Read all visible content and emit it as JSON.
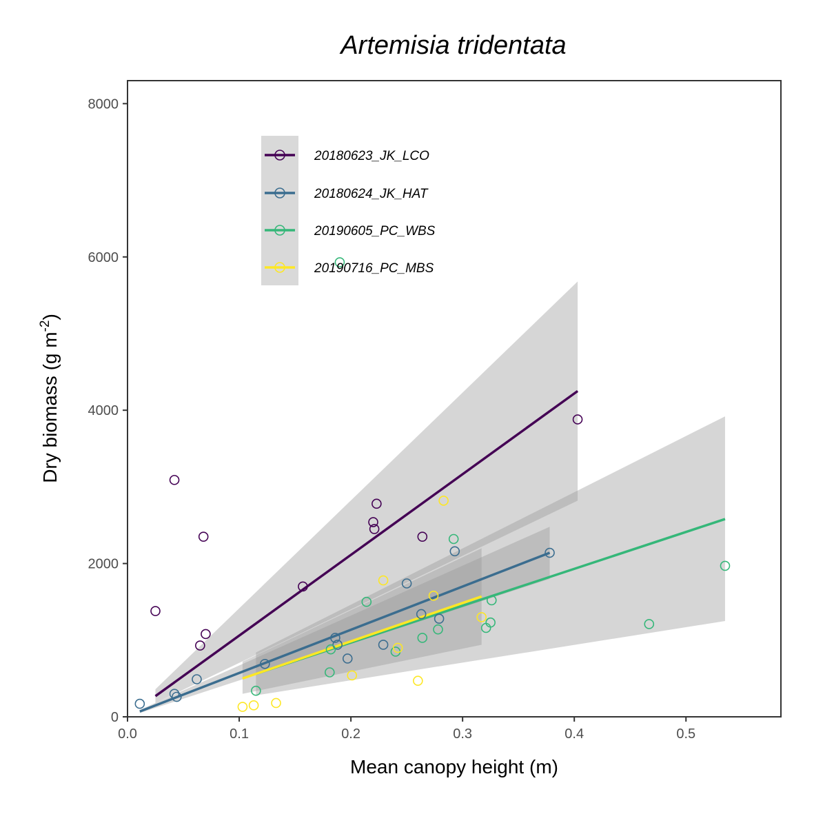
{
  "chart_data": {
    "type": "scatter",
    "title": "Artemisia tridentata",
    "xlabel": "Mean canopy height (m)",
    "ylabel": {
      "base": "Dry biomass (g m",
      "superscript": "-2",
      "close": ")"
    },
    "xlim": [
      0.0,
      0.585
    ],
    "ylim": [
      0,
      8300
    ],
    "x_ticks": [
      0.0,
      0.1,
      0.2,
      0.3,
      0.4,
      0.5
    ],
    "x_tick_labels": [
      "0.0",
      "0.1",
      "0.2",
      "0.3",
      "0.4",
      "0.5"
    ],
    "y_ticks": [
      0,
      2000,
      4000,
      6000,
      8000
    ],
    "y_tick_labels": [
      "0",
      "2000",
      "4000",
      "6000",
      "8000"
    ],
    "grid": false,
    "legend_position": "top-left",
    "series": [
      {
        "name": "20180623_JK_LCO",
        "color": "#440154",
        "points": [
          [
            0.025,
            1380
          ],
          [
            0.042,
            3090
          ],
          [
            0.065,
            930
          ],
          [
            0.068,
            2350
          ],
          [
            0.07,
            1080
          ],
          [
            0.157,
            1700
          ],
          [
            0.22,
            2540
          ],
          [
            0.221,
            2450
          ],
          [
            0.223,
            2780
          ],
          [
            0.264,
            2350
          ],
          [
            0.403,
            3880
          ]
        ],
        "fit": {
          "x": [
            0.025,
            0.403
          ],
          "y": [
            270,
            4250
          ]
        },
        "ci": {
          "x": [
            0.025,
            0.403
          ],
          "upper": [
            360,
            5680
          ],
          "lower": [
            180,
            2820
          ]
        }
      },
      {
        "name": "20180624_JK_HAT",
        "color": "#3b6d8f",
        "points": [
          [
            0.011,
            170
          ],
          [
            0.042,
            300
          ],
          [
            0.044,
            260
          ],
          [
            0.062,
            490
          ],
          [
            0.123,
            690
          ],
          [
            0.186,
            1030
          ],
          [
            0.188,
            940
          ],
          [
            0.197,
            760
          ],
          [
            0.229,
            940
          ],
          [
            0.25,
            1740
          ],
          [
            0.263,
            1340
          ],
          [
            0.279,
            1280
          ],
          [
            0.293,
            2160
          ],
          [
            0.378,
            2140
          ]
        ],
        "fit": {
          "x": [
            0.011,
            0.378
          ],
          "y": [
            70,
            2140
          ]
        },
        "ci": {
          "x": [
            0.011,
            0.378
          ],
          "upper": [
            90,
            2480
          ],
          "lower": [
            50,
            1800
          ]
        }
      },
      {
        "name": "20190605_PC_WBS",
        "color": "#35b779",
        "points": [
          [
            0.115,
            340
          ],
          [
            0.181,
            580
          ],
          [
            0.182,
            880
          ],
          [
            0.19,
            5930
          ],
          [
            0.214,
            1500
          ],
          [
            0.24,
            850
          ],
          [
            0.264,
            1030
          ],
          [
            0.278,
            1140
          ],
          [
            0.292,
            2320
          ],
          [
            0.321,
            1160
          ],
          [
            0.325,
            1230
          ],
          [
            0.326,
            1520
          ],
          [
            0.467,
            1210
          ],
          [
            0.535,
            1970
          ]
        ],
        "fit": {
          "x": [
            0.115,
            0.535
          ],
          "y": [
            560,
            2580
          ]
        },
        "ci": {
          "x": [
            0.115,
            0.535
          ],
          "upper": [
            840,
            3920
          ],
          "lower": [
            280,
            1250
          ]
        }
      },
      {
        "name": "20190716_PC_MBS",
        "color": "#fde725",
        "points": [
          [
            0.103,
            130
          ],
          [
            0.113,
            150
          ],
          [
            0.133,
            180
          ],
          [
            0.201,
            540
          ],
          [
            0.229,
            1780
          ],
          [
            0.242,
            900
          ],
          [
            0.26,
            470
          ],
          [
            0.274,
            1580
          ],
          [
            0.283,
            2820
          ],
          [
            0.317,
            1300
          ]
        ],
        "fit": {
          "x": [
            0.103,
            0.317
          ],
          "y": [
            500,
            1570
          ]
        },
        "ci": {
          "x": [
            0.103,
            0.317
          ],
          "upper": [
            720,
            2200
          ],
          "lower": [
            300,
            940
          ]
        }
      }
    ]
  }
}
